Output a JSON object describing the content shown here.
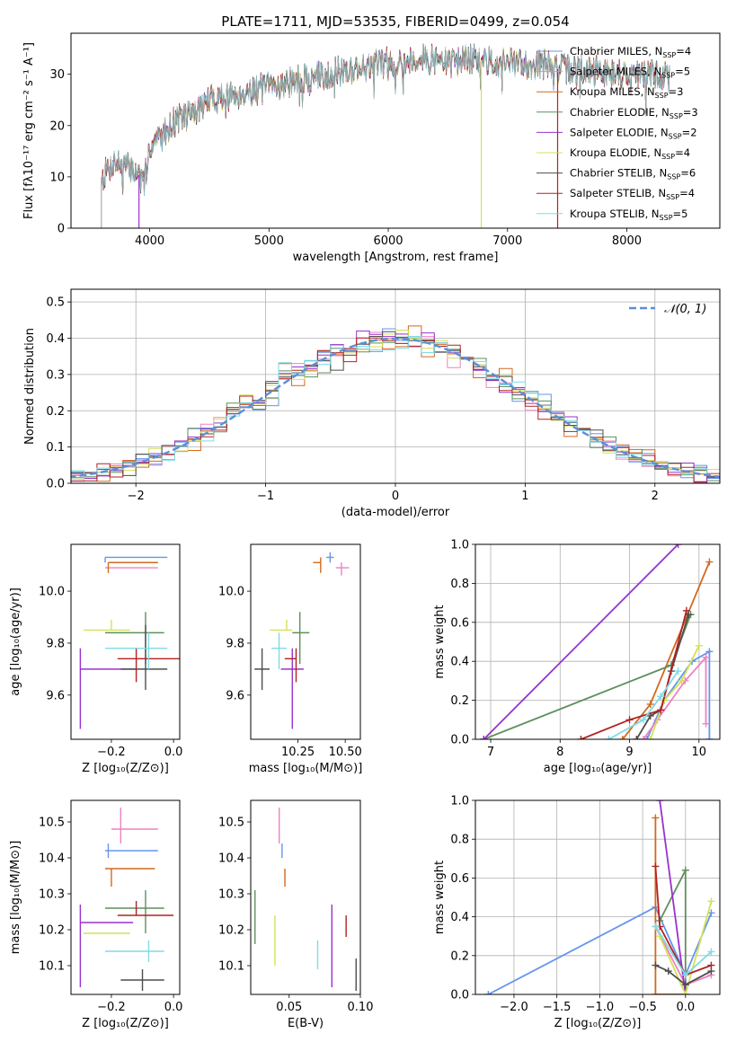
{
  "colors": {
    "Chabrier MILES": "#6495ed",
    "Salpeter MILES": "#ee82c0",
    "Kroupa MILES": "#d2691e",
    "Chabrier ELODIE": "#5f8f5f",
    "Salpeter ELODIE": "#9932cc",
    "Kroupa ELODIE": "#d4e157",
    "Chabrier STELIB": "#4d4d4d",
    "Salpeter STELIB": "#b22222",
    "Kroupa STELIB": "#7fdbe5",
    "normal": "#5b8fd8"
  },
  "chart_data": [
    {
      "id": "spectrum",
      "type": "line",
      "title": "PLATE=1711, MJD=53535, FIBERID=0499, z=0.054",
      "xlabel": "wavelength [Angstrom, rest frame]",
      "ylabel": "Flux [fλ10⁻¹⁷ erg cm⁻² s⁻¹ A⁻¹]",
      "xlim": [
        3340,
        8780
      ],
      "ylim": [
        0,
        38
      ],
      "xticks": [
        4000,
        5000,
        6000,
        7000,
        8000
      ],
      "yticks": [
        0,
        10,
        20,
        30
      ],
      "grid": false,
      "legend_position": "top-right",
      "legend": [
        {
          "prefix": "Chabrier MILES, N",
          "sub": "SSP",
          "suffix": "=4",
          "key": "Chabrier MILES"
        },
        {
          "prefix": "Salpeter MILES, N",
          "sub": "SSP",
          "suffix": "=5",
          "key": "Salpeter MILES"
        },
        {
          "prefix": "Kroupa MILES, N",
          "sub": "SSP",
          "suffix": "=3",
          "key": "Kroupa MILES"
        },
        {
          "prefix": "Chabrier ELODIE, N",
          "sub": "SSP",
          "suffix": "=3",
          "key": "Chabrier ELODIE"
        },
        {
          "prefix": "Salpeter ELODIE, N",
          "sub": "SSP",
          "suffix": "=2",
          "key": "Salpeter ELODIE"
        },
        {
          "prefix": "Kroupa ELODIE, N",
          "sub": "SSP",
          "suffix": "=4",
          "key": "Kroupa ELODIE"
        },
        {
          "prefix": "Chabrier STELIB, N",
          "sub": "SSP",
          "suffix": "=6",
          "key": "Chabrier STELIB"
        },
        {
          "prefix": "Salpeter STELIB, N",
          "sub": "SSP",
          "suffix": "=4",
          "key": "Salpeter STELIB"
        },
        {
          "prefix": "Kroupa STELIB, N",
          "sub": "SSP",
          "suffix": "=5",
          "key": "Kroupa STELIB"
        }
      ],
      "continuum": [
        [
          3600,
          10
        ],
        [
          3700,
          13
        ],
        [
          3800,
          12
        ],
        [
          3900,
          11
        ],
        [
          3950,
          8
        ],
        [
          4000,
          16
        ],
        [
          4100,
          18
        ],
        [
          4200,
          21
        ],
        [
          4300,
          22
        ],
        [
          4400,
          23
        ],
        [
          4500,
          25
        ],
        [
          4700,
          26
        ],
        [
          4900,
          27
        ],
        [
          5100,
          28
        ],
        [
          5300,
          29
        ],
        [
          5500,
          30
        ],
        [
          5700,
          31
        ],
        [
          5900,
          32
        ],
        [
          6100,
          32.5
        ],
        [
          6300,
          33
        ],
        [
          6500,
          32.5
        ],
        [
          6700,
          33
        ],
        [
          6900,
          32.5
        ],
        [
          7100,
          32
        ],
        [
          7300,
          32
        ],
        [
          7420,
          31
        ],
        [
          7600,
          31
        ],
        [
          7800,
          30.5
        ],
        [
          8000,
          30
        ],
        [
          8200,
          30
        ],
        [
          8350,
          29.5
        ]
      ],
      "dropouts": [
        {
          "key": "Salpeter ELODIE",
          "x": 3910
        },
        {
          "key": "Kroupa ELODIE",
          "x": 6780
        },
        {
          "key": "Salpeter STELIB",
          "x": 7420
        }
      ]
    },
    {
      "id": "residuals",
      "type": "step",
      "xlabel": "(data-model)/error",
      "ylabel": "Normed distribution",
      "xlim": [
        -2.5,
        2.5
      ],
      "ylim": [
        0,
        0.535
      ],
      "xticks": [
        -2,
        -1,
        0,
        1,
        2
      ],
      "yticks": [
        0.0,
        0.1,
        0.2,
        0.3,
        0.4,
        0.5
      ],
      "grid": true,
      "bin_width": 0.1,
      "legend_position": "top-right",
      "reference": {
        "label": "𝒩(0, 1)",
        "mean": 0,
        "sigma": 1
      }
    },
    {
      "id": "age-vs-Z",
      "type": "scatter",
      "xlabel": "Z [log₁₀(Z/Z⊙)]",
      "ylabel": "age  [log₁₀(age/yr)]",
      "xlim": [
        -0.33,
        0.02
      ],
      "ylim": [
        9.43,
        10.18
      ],
      "xticks": [
        -0.2,
        0.0
      ],
      "yticks": [
        9.6,
        9.8,
        10.0
      ],
      "grid": false,
      "points": [
        {
          "key": "Chabrier MILES",
          "x": -0.22,
          "xerr": [
            0.0,
            0.2
          ],
          "y": 10.13,
          "yerr": [
            0.02,
            0.0
          ]
        },
        {
          "key": "Salpeter MILES",
          "x": -0.2,
          "xerr": [
            0.02,
            0.15
          ],
          "y": 10.09,
          "yerr": [
            0.0,
            0.0
          ]
        },
        {
          "key": "Kroupa MILES",
          "x": -0.21,
          "xerr": [
            0.0,
            0.16
          ],
          "y": 10.11,
          "yerr": [
            0.04,
            0.0
          ]
        },
        {
          "key": "Chabrier ELODIE",
          "x": -0.09,
          "xerr": [
            0.13,
            0.06
          ],
          "y": 9.84,
          "yerr": [
            0.12,
            0.08
          ]
        },
        {
          "key": "Salpeter ELODIE",
          "x": -0.3,
          "xerr": [
            0.0,
            0.18
          ],
          "y": 9.7,
          "yerr": [
            0.23,
            0.08
          ]
        },
        {
          "key": "Kroupa ELODIE",
          "x": -0.2,
          "xerr": [
            0.09,
            0.06
          ],
          "y": 9.85,
          "yerr": [
            0.0,
            0.04
          ]
        },
        {
          "key": "Chabrier STELIB",
          "x": -0.09,
          "xerr": [
            0.08,
            0.07
          ],
          "y": 9.7,
          "yerr": [
            0.08,
            0.17
          ]
        },
        {
          "key": "Salpeter STELIB",
          "x": -0.12,
          "xerr": [
            0.06,
            0.14
          ],
          "y": 9.74,
          "yerr": [
            0.09,
            0.04
          ]
        },
        {
          "key": "Kroupa STELIB",
          "x": -0.08,
          "xerr": [
            0.14,
            0.06
          ],
          "y": 9.78,
          "yerr": [
            0.08,
            0.06
          ]
        }
      ]
    },
    {
      "id": "age-vs-mass",
      "type": "scatter",
      "xlabel": "mass [log₁₀(M/M⊙)]",
      "ylabel": "",
      "xlim": [
        10.0,
        10.58
      ],
      "ylim": [
        9.43,
        10.18
      ],
      "xticks": [
        10.25,
        10.5
      ],
      "yticks": [
        9.6,
        9.8,
        10.0
      ],
      "grid": false,
      "points": [
        {
          "key": "Chabrier MILES",
          "x": 10.42,
          "xerr": [
            0.02,
            0.02
          ],
          "y": 10.13,
          "yerr": [
            0.02,
            0.02
          ]
        },
        {
          "key": "Salpeter MILES",
          "x": 10.48,
          "xerr": [
            0.03,
            0.04
          ],
          "y": 10.09,
          "yerr": [
            0.03,
            0.02
          ]
        },
        {
          "key": "Kroupa MILES",
          "x": 10.37,
          "xerr": [
            0.04,
            0.0
          ],
          "y": 10.11,
          "yerr": [
            0.04,
            0.02
          ]
        },
        {
          "key": "Chabrier ELODIE",
          "x": 10.26,
          "xerr": [
            0.04,
            0.05
          ],
          "y": 9.84,
          "yerr": [
            0.12,
            0.08
          ]
        },
        {
          "key": "Salpeter ELODIE",
          "x": 10.22,
          "xerr": [
            0.06,
            0.06
          ],
          "y": 9.7,
          "yerr": [
            0.23,
            0.08
          ]
        },
        {
          "key": "Kroupa ELODIE",
          "x": 10.19,
          "xerr": [
            0.09,
            0.03
          ],
          "y": 9.85,
          "yerr": [
            0.0,
            0.04
          ]
        },
        {
          "key": "Chabrier STELIB",
          "x": 10.06,
          "xerr": [
            0.04,
            0.04
          ],
          "y": 9.7,
          "yerr": [
            0.08,
            0.08
          ]
        },
        {
          "key": "Salpeter STELIB",
          "x": 10.24,
          "xerr": [
            0.06,
            0.0
          ],
          "y": 9.74,
          "yerr": [
            0.09,
            0.04
          ]
        },
        {
          "key": "Kroupa STELIB",
          "x": 10.15,
          "xerr": [
            0.04,
            0.04
          ],
          "y": 9.78,
          "yerr": [
            0.08,
            0.06
          ]
        }
      ]
    },
    {
      "id": "massweight-vs-age",
      "type": "line",
      "xlabel": "age  [log₁₀(age/yr)]",
      "ylabel": "mass weight",
      "xlim": [
        6.78,
        10.3
      ],
      "ylim": [
        0,
        1.0
      ],
      "xticks": [
        7,
        8,
        9,
        10
      ],
      "yticks": [
        0.0,
        0.2,
        0.4,
        0.6,
        0.8,
        1.0
      ],
      "grid": true,
      "series": [
        {
          "key": "Chabrier MILES",
          "x": [
            9.25,
            9.5,
            9.9,
            10.15,
            10.15
          ],
          "y": [
            0.0,
            0.2,
            0.4,
            0.45,
            0.0
          ]
        },
        {
          "key": "Salpeter MILES",
          "x": [
            9.2,
            9.4,
            9.8,
            10.1,
            10.1
          ],
          "y": [
            0.0,
            0.1,
            0.3,
            0.42,
            0.08
          ]
        },
        {
          "key": "Kroupa MILES",
          "x": [
            8.9,
            9.3,
            10.15
          ],
          "y": [
            0.0,
            0.18,
            0.91
          ]
        },
        {
          "key": "Chabrier ELODIE",
          "x": [
            6.9,
            9.6,
            9.88
          ],
          "y": [
            0.0,
            0.38,
            0.64
          ]
        },
        {
          "key": "Salpeter ELODIE",
          "x": [
            6.9,
            9.7
          ],
          "y": [
            0.0,
            1.0
          ]
        },
        {
          "key": "Kroupa ELODIE",
          "x": [
            9.3,
            9.5,
            9.75,
            10.0
          ],
          "y": [
            0.0,
            0.2,
            0.3,
            0.48
          ]
        },
        {
          "key": "Chabrier STELIB",
          "x": [
            9.1,
            9.3,
            9.45,
            9.6,
            9.85
          ],
          "y": [
            0.0,
            0.12,
            0.15,
            0.35,
            0.64
          ]
        },
        {
          "key": "Salpeter STELIB",
          "x": [
            8.3,
            9.0,
            9.45,
            9.82
          ],
          "y": [
            0.0,
            0.1,
            0.15,
            0.66
          ]
        },
        {
          "key": "Kroupa STELIB",
          "x": [
            8.7,
            9.2,
            9.45,
            9.7
          ],
          "y": [
            0.0,
            0.1,
            0.22,
            0.35
          ]
        }
      ]
    },
    {
      "id": "mass-vs-Z",
      "type": "scatter",
      "xlabel": "Z [log₁₀(Z/Z⊙)]",
      "ylabel": "mass [log₁₀(M/M⊙)]",
      "xlim": [
        -0.33,
        0.02
      ],
      "ylim": [
        10.02,
        10.56
      ],
      "xticks": [
        -0.2,
        0.0
      ],
      "yticks": [
        10.1,
        10.2,
        10.3,
        10.4,
        10.5
      ],
      "grid": false,
      "points": [
        {
          "key": "Chabrier MILES",
          "x": -0.21,
          "xerr": [
            0.01,
            0.16
          ],
          "y": 10.42,
          "yerr": [
            0.02,
            0.02
          ]
        },
        {
          "key": "Salpeter MILES",
          "x": -0.17,
          "xerr": [
            0.03,
            0.12
          ],
          "y": 10.48,
          "yerr": [
            0.04,
            0.06
          ]
        },
        {
          "key": "Kroupa MILES",
          "x": -0.2,
          "xerr": [
            0.02,
            0.14
          ],
          "y": 10.37,
          "yerr": [
            0.05,
            0.0
          ]
        },
        {
          "key": "Chabrier ELODIE",
          "x": -0.09,
          "xerr": [
            0.13,
            0.06
          ],
          "y": 10.26,
          "yerr": [
            0.07,
            0.05
          ]
        },
        {
          "key": "Salpeter ELODIE",
          "x": -0.3,
          "xerr": [
            0.0,
            0.17
          ],
          "y": 10.22,
          "yerr": [
            0.18,
            0.05
          ]
        },
        {
          "key": "Kroupa ELODIE",
          "x": -0.2,
          "xerr": [
            0.09,
            0.06
          ],
          "y": 10.19,
          "yerr": [
            0.0,
            0.0
          ]
        },
        {
          "key": "Chabrier STELIB",
          "x": -0.1,
          "xerr": [
            0.07,
            0.07
          ],
          "y": 10.06,
          "yerr": [
            0.03,
            0.03
          ]
        },
        {
          "key": "Salpeter STELIB",
          "x": -0.12,
          "xerr": [
            0.06,
            0.12
          ],
          "y": 10.24,
          "yerr": [
            0.0,
            0.04
          ]
        },
        {
          "key": "Kroupa STELIB",
          "x": -0.08,
          "xerr": [
            0.14,
            0.05
          ],
          "y": 10.14,
          "yerr": [
            0.03,
            0.03
          ]
        }
      ]
    },
    {
      "id": "mass-vs-EBV",
      "type": "scatter",
      "xlabel": "E(B-V)",
      "ylabel": "",
      "xlim": [
        0.023,
        0.1
      ],
      "ylim": [
        10.02,
        10.56
      ],
      "xticks": [
        0.05,
        0.1
      ],
      "yticks": [
        10.1,
        10.2,
        10.3,
        10.4,
        10.5
      ],
      "grid": false,
      "points": [
        {
          "key": "Chabrier MILES",
          "x": 0.045,
          "xerr": [
            0.0,
            0.0
          ],
          "y": 10.42,
          "yerr": [
            0.02,
            0.02
          ]
        },
        {
          "key": "Salpeter MILES",
          "x": 0.043,
          "xerr": [
            0.0,
            0.0
          ],
          "y": 10.48,
          "yerr": [
            0.04,
            0.06
          ]
        },
        {
          "key": "Kroupa MILES",
          "x": 0.047,
          "xerr": [
            0.0,
            0.0
          ],
          "y": 10.37,
          "yerr": [
            0.05,
            0.0
          ]
        },
        {
          "key": "Chabrier ELODIE",
          "x": 0.026,
          "xerr": [
            0.0,
            0.0
          ],
          "y": 10.26,
          "yerr": [
            0.1,
            0.05
          ]
        },
        {
          "key": "Salpeter ELODIE",
          "x": 0.08,
          "xerr": [
            0.0,
            0.0
          ],
          "y": 10.22,
          "yerr": [
            0.18,
            0.05
          ]
        },
        {
          "key": "Kroupa ELODIE",
          "x": 0.04,
          "xerr": [
            0.0,
            0.0
          ],
          "y": 10.19,
          "yerr": [
            0.09,
            0.05
          ]
        },
        {
          "key": "Chabrier STELIB",
          "x": 0.097,
          "xerr": [
            0.0,
            0.0
          ],
          "y": 10.06,
          "yerr": [
            0.03,
            0.06
          ]
        },
        {
          "key": "Salpeter STELIB",
          "x": 0.09,
          "xerr": [
            0.0,
            0.0
          ],
          "y": 10.24,
          "yerr": [
            0.06,
            0.0
          ]
        },
        {
          "key": "Kroupa STELIB",
          "x": 0.07,
          "xerr": [
            0.0,
            0.0
          ],
          "y": 10.14,
          "yerr": [
            0.05,
            0.03
          ]
        }
      ]
    },
    {
      "id": "massweight-vs-Z",
      "type": "line",
      "xlabel": "Z [log₁₀(Z/Z⊙)]",
      "ylabel": "mass weight",
      "xlim": [
        -2.45,
        0.4
      ],
      "ylim": [
        0,
        1.0
      ],
      "xticks": [
        -2.0,
        -1.5,
        -1.0,
        -0.5,
        0.0
      ],
      "yticks": [
        0.0,
        0.2,
        0.4,
        0.6,
        0.8,
        1.0
      ],
      "grid": true,
      "series": [
        {
          "key": "Chabrier MILES",
          "x": [
            -2.3,
            -0.35,
            0.0,
            0.3
          ],
          "y": [
            0.0,
            0.45,
            0.1,
            0.42
          ]
        },
        {
          "key": "Salpeter MILES",
          "x": [
            -0.35,
            0.0,
            0.3
          ],
          "y": [
            0.35,
            0.05,
            0.1
          ]
        },
        {
          "key": "Kroupa MILES",
          "x": [
            -0.35,
            -0.35,
            0.0
          ],
          "y": [
            0.91,
            0.0,
            0.0
          ]
        },
        {
          "key": "Chabrier ELODIE",
          "x": [
            -0.3,
            0.0,
            0.0
          ],
          "y": [
            0.38,
            0.64,
            0.0
          ]
        },
        {
          "key": "Salpeter ELODIE",
          "x": [
            -0.3,
            0.0
          ],
          "y": [
            1.0,
            0.0
          ]
        },
        {
          "key": "Kroupa ELODIE",
          "x": [
            -0.3,
            0.0,
            0.3
          ],
          "y": [
            0.3,
            0.0,
            0.48
          ]
        },
        {
          "key": "Chabrier STELIB",
          "x": [
            -0.35,
            -0.2,
            0.0,
            0.3
          ],
          "y": [
            0.15,
            0.12,
            0.05,
            0.12
          ]
        },
        {
          "key": "Salpeter STELIB",
          "x": [
            -0.35,
            -0.3,
            0.0,
            0.3
          ],
          "y": [
            0.66,
            0.35,
            0.1,
            0.15
          ]
        },
        {
          "key": "Kroupa STELIB",
          "x": [
            -0.35,
            0.0,
            0.3
          ],
          "y": [
            0.35,
            0.1,
            0.22
          ]
        }
      ]
    }
  ]
}
